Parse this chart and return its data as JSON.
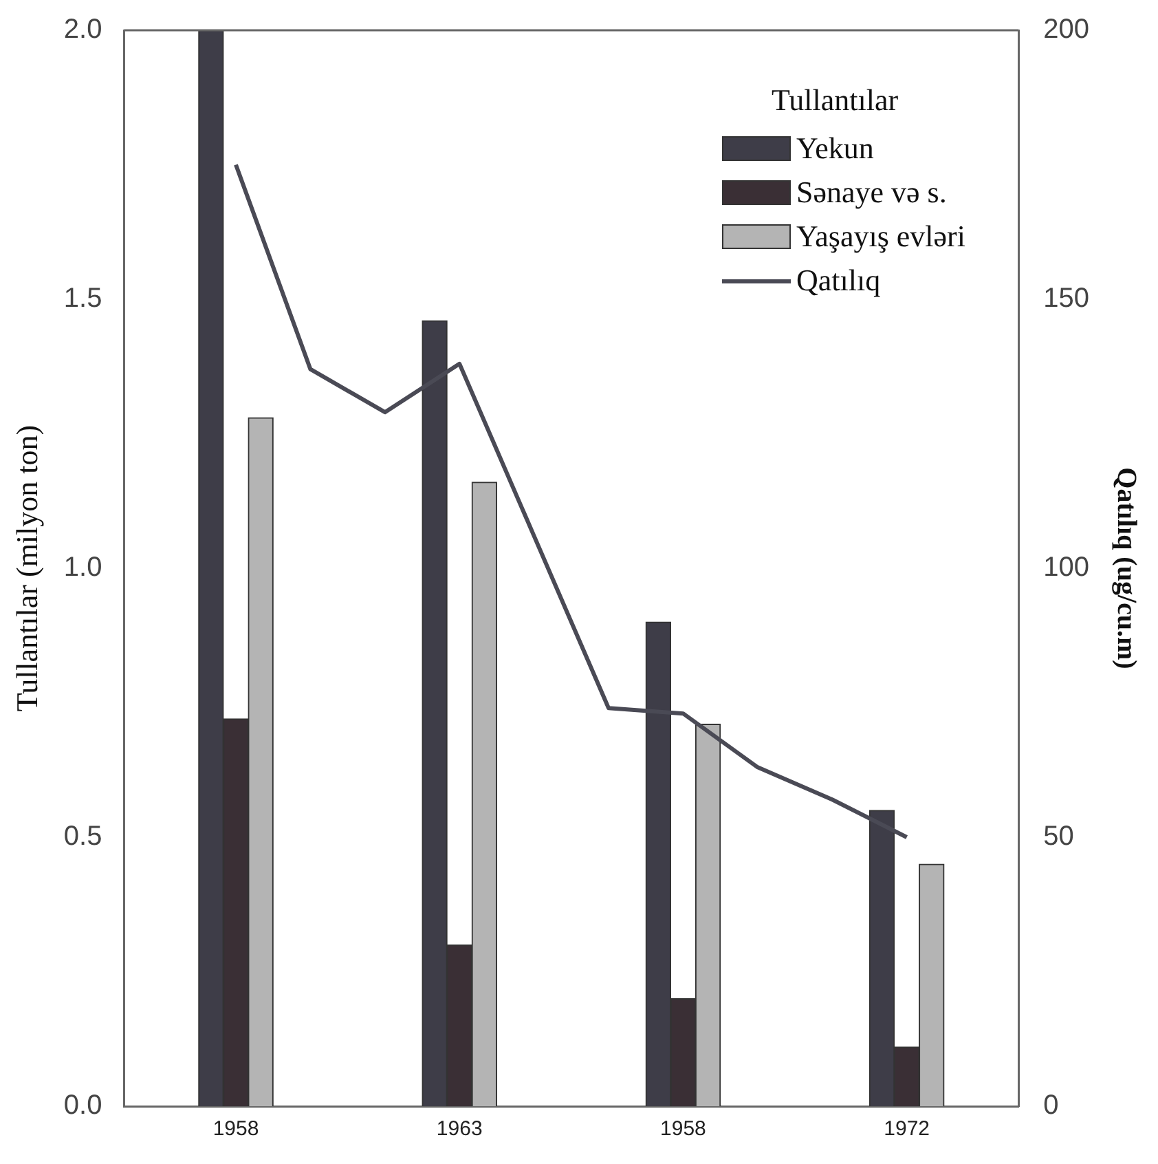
{
  "chart_data": {
    "type": "bar",
    "categories": [
      null,
      "1958",
      null,
      null,
      "1963",
      null,
      null,
      "1958",
      null,
      null,
      "1972",
      null
    ],
    "ylabel": "Tullantılar (milyon ton)",
    "y2label": "Qatılıq (ug/cu.m)",
    "legend_title": "Tullantılar",
    "legend": "top right",
    "grid": false,
    "ylim": [
      0,
      2.0
    ],
    "yticks": [
      {
        "value": 0,
        "label": "0.0"
      },
      {
        "value": 0.5,
        "label": "0.5"
      },
      {
        "value": 1,
        "label": "1.0"
      },
      {
        "value": 1.5,
        "label": "1.5"
      },
      {
        "value": 2,
        "label": "2.0"
      }
    ],
    "y2lim": [
      0,
      200
    ],
    "y2ticks": [
      0,
      50,
      100,
      150,
      200
    ],
    "series": [
      {
        "name": "Yekun",
        "color": "#3e3d48",
        "values": [
          null,
          2.0,
          null,
          null,
          1.46,
          null,
          null,
          0.9,
          null,
          null,
          0.55,
          null
        ]
      },
      {
        "name": "Sənaye və s.",
        "color": "#3a2f35",
        "values": [
          null,
          0.72,
          null,
          null,
          0.3,
          null,
          null,
          0.2,
          null,
          null,
          0.11,
          null
        ]
      },
      {
        "name": "Yaşayış evləri",
        "color": "#b4b4b4",
        "values": [
          null,
          1.28,
          null,
          null,
          1.16,
          null,
          null,
          0.71,
          null,
          null,
          0.45,
          null
        ]
      },
      {
        "name": "Qatılıq",
        "type": "line",
        "axis": "y2",
        "color": "#4a4a55",
        "marker": "none",
        "line_style": "solid",
        "values": [
          null,
          175,
          137,
          129,
          138,
          106,
          74,
          73,
          63,
          57,
          50,
          null
        ]
      }
    ]
  }
}
